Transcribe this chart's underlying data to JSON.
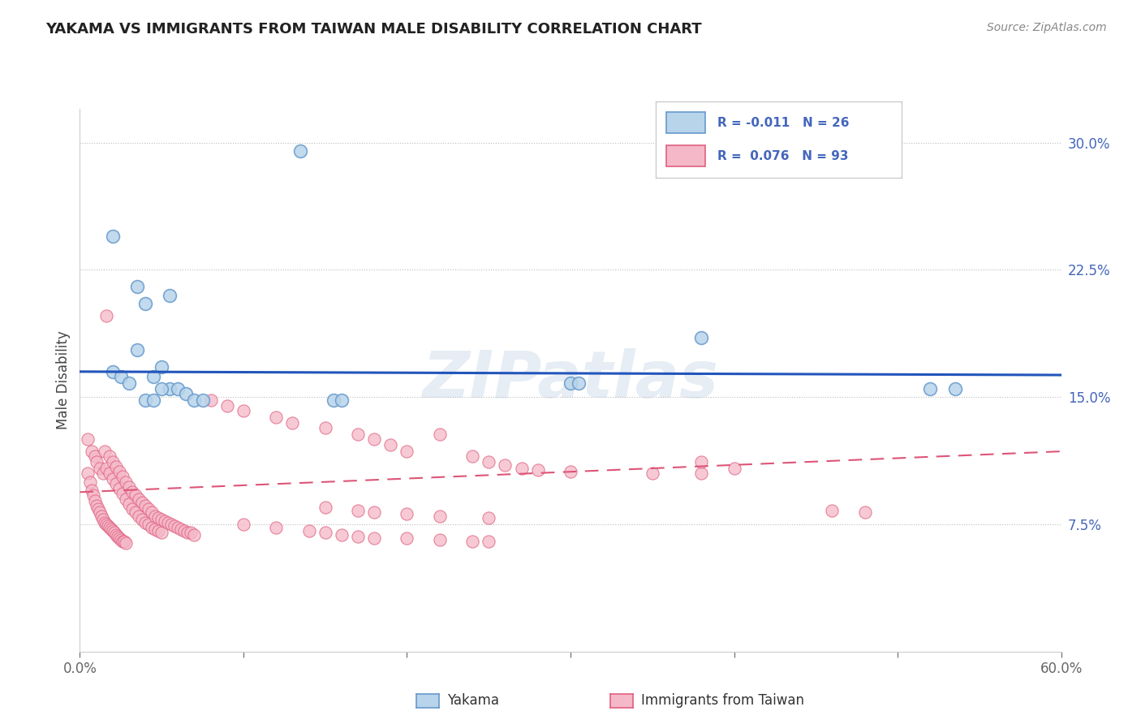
{
  "title": "YAKAMA VS IMMIGRANTS FROM TAIWAN MALE DISABILITY CORRELATION CHART",
  "source": "Source: ZipAtlas.com",
  "ylabel": "Male Disability",
  "xlim": [
    0.0,
    0.6
  ],
  "ylim": [
    0.0,
    0.32
  ],
  "xticks": [
    0.0,
    0.1,
    0.2,
    0.3,
    0.4,
    0.5,
    0.6
  ],
  "xticklabels": [
    "0.0%",
    "",
    "",
    "",
    "",
    "",
    "60.0%"
  ],
  "yticks_right": [
    0.075,
    0.15,
    0.225,
    0.3
  ],
  "yticklabels_right": [
    "7.5%",
    "15.0%",
    "22.5%",
    "30.0%"
  ],
  "legend_color1": "#b8d4ea",
  "legend_color2": "#f4b8c8",
  "dot_color_blue_fill": "#b8d4ea",
  "dot_color_blue_edge": "#6699cc",
  "dot_color_pink_fill": "#f4b8c8",
  "dot_color_pink_edge": "#e06080",
  "line_color_blue": "#2255bb",
  "line_color_pink": "#dd5577",
  "watermark": "ZIPatlas",
  "blue_dots": [
    [
      0.135,
      0.295
    ],
    [
      0.02,
      0.245
    ],
    [
      0.38,
      0.185
    ],
    [
      0.035,
      0.215
    ],
    [
      0.04,
      0.205
    ],
    [
      0.055,
      0.21
    ],
    [
      0.035,
      0.178
    ],
    [
      0.05,
      0.168
    ],
    [
      0.045,
      0.162
    ],
    [
      0.055,
      0.155
    ],
    [
      0.06,
      0.155
    ],
    [
      0.065,
      0.152
    ],
    [
      0.04,
      0.148
    ],
    [
      0.045,
      0.148
    ],
    [
      0.07,
      0.148
    ],
    [
      0.075,
      0.148
    ],
    [
      0.155,
      0.148
    ],
    [
      0.16,
      0.148
    ],
    [
      0.3,
      0.158
    ],
    [
      0.305,
      0.158
    ],
    [
      0.52,
      0.155
    ],
    [
      0.535,
      0.155
    ],
    [
      0.02,
      0.165
    ],
    [
      0.025,
      0.162
    ],
    [
      0.03,
      0.158
    ],
    [
      0.05,
      0.155
    ]
  ],
  "pink_dots": [
    [
      0.005,
      0.125
    ],
    [
      0.007,
      0.118
    ],
    [
      0.009,
      0.115
    ],
    [
      0.01,
      0.112
    ],
    [
      0.012,
      0.108
    ],
    [
      0.014,
      0.105
    ],
    [
      0.015,
      0.118
    ],
    [
      0.016,
      0.108
    ],
    [
      0.018,
      0.115
    ],
    [
      0.018,
      0.105
    ],
    [
      0.02,
      0.112
    ],
    [
      0.02,
      0.102
    ],
    [
      0.022,
      0.109
    ],
    [
      0.022,
      0.099
    ],
    [
      0.024,
      0.106
    ],
    [
      0.024,
      0.096
    ],
    [
      0.026,
      0.103
    ],
    [
      0.026,
      0.093
    ],
    [
      0.028,
      0.1
    ],
    [
      0.028,
      0.09
    ],
    [
      0.03,
      0.097
    ],
    [
      0.03,
      0.087
    ],
    [
      0.032,
      0.094
    ],
    [
      0.032,
      0.084
    ],
    [
      0.034,
      0.092
    ],
    [
      0.034,
      0.082
    ],
    [
      0.036,
      0.09
    ],
    [
      0.036,
      0.08
    ],
    [
      0.038,
      0.088
    ],
    [
      0.038,
      0.078
    ],
    [
      0.04,
      0.086
    ],
    [
      0.04,
      0.076
    ],
    [
      0.042,
      0.084
    ],
    [
      0.042,
      0.075
    ],
    [
      0.044,
      0.082
    ],
    [
      0.044,
      0.073
    ],
    [
      0.046,
      0.08
    ],
    [
      0.046,
      0.072
    ],
    [
      0.048,
      0.079
    ],
    [
      0.048,
      0.071
    ],
    [
      0.05,
      0.078
    ],
    [
      0.05,
      0.07
    ],
    [
      0.052,
      0.077
    ],
    [
      0.054,
      0.076
    ],
    [
      0.056,
      0.075
    ],
    [
      0.058,
      0.074
    ],
    [
      0.06,
      0.073
    ],
    [
      0.062,
      0.072
    ],
    [
      0.064,
      0.071
    ],
    [
      0.066,
      0.07
    ],
    [
      0.068,
      0.07
    ],
    [
      0.07,
      0.069
    ],
    [
      0.005,
      0.105
    ],
    [
      0.006,
      0.1
    ],
    [
      0.007,
      0.095
    ],
    [
      0.008,
      0.092
    ],
    [
      0.009,
      0.089
    ],
    [
      0.01,
      0.086
    ],
    [
      0.011,
      0.084
    ],
    [
      0.012,
      0.082
    ],
    [
      0.013,
      0.08
    ],
    [
      0.014,
      0.078
    ],
    [
      0.015,
      0.076
    ],
    [
      0.016,
      0.075
    ],
    [
      0.017,
      0.074
    ],
    [
      0.018,
      0.073
    ],
    [
      0.019,
      0.072
    ],
    [
      0.02,
      0.071
    ],
    [
      0.021,
      0.07
    ],
    [
      0.022,
      0.069
    ],
    [
      0.023,
      0.068
    ],
    [
      0.024,
      0.067
    ],
    [
      0.025,
      0.066
    ],
    [
      0.026,
      0.065
    ],
    [
      0.027,
      0.065
    ],
    [
      0.028,
      0.064
    ],
    [
      0.016,
      0.198
    ],
    [
      0.08,
      0.148
    ],
    [
      0.09,
      0.145
    ],
    [
      0.1,
      0.142
    ],
    [
      0.12,
      0.138
    ],
    [
      0.13,
      0.135
    ],
    [
      0.15,
      0.132
    ],
    [
      0.17,
      0.128
    ],
    [
      0.18,
      0.125
    ],
    [
      0.19,
      0.122
    ],
    [
      0.2,
      0.118
    ],
    [
      0.22,
      0.128
    ],
    [
      0.24,
      0.115
    ],
    [
      0.25,
      0.112
    ],
    [
      0.26,
      0.11
    ],
    [
      0.27,
      0.108
    ],
    [
      0.28,
      0.107
    ],
    [
      0.3,
      0.106
    ],
    [
      0.35,
      0.105
    ],
    [
      0.38,
      0.105
    ],
    [
      0.1,
      0.075
    ],
    [
      0.12,
      0.073
    ],
    [
      0.14,
      0.071
    ],
    [
      0.15,
      0.07
    ],
    [
      0.16,
      0.069
    ],
    [
      0.17,
      0.068
    ],
    [
      0.18,
      0.067
    ],
    [
      0.2,
      0.067
    ],
    [
      0.22,
      0.066
    ],
    [
      0.24,
      0.065
    ],
    [
      0.25,
      0.065
    ],
    [
      0.15,
      0.085
    ],
    [
      0.17,
      0.083
    ],
    [
      0.18,
      0.082
    ],
    [
      0.2,
      0.081
    ],
    [
      0.22,
      0.08
    ],
    [
      0.25,
      0.079
    ],
    [
      0.38,
      0.112
    ],
    [
      0.4,
      0.108
    ],
    [
      0.46,
      0.083
    ],
    [
      0.48,
      0.082
    ]
  ],
  "blue_trend_line": {
    "x": [
      0.0,
      0.6
    ],
    "y": [
      0.165,
      0.163
    ]
  },
  "pink_trend_line": {
    "x": [
      0.0,
      0.6
    ],
    "y": [
      0.094,
      0.118
    ]
  },
  "grid_color": "#bbbbbb",
  "background_color": "#ffffff",
  "title_color": "#222222",
  "source_color": "#888888",
  "right_axis_color": "#4466bb"
}
